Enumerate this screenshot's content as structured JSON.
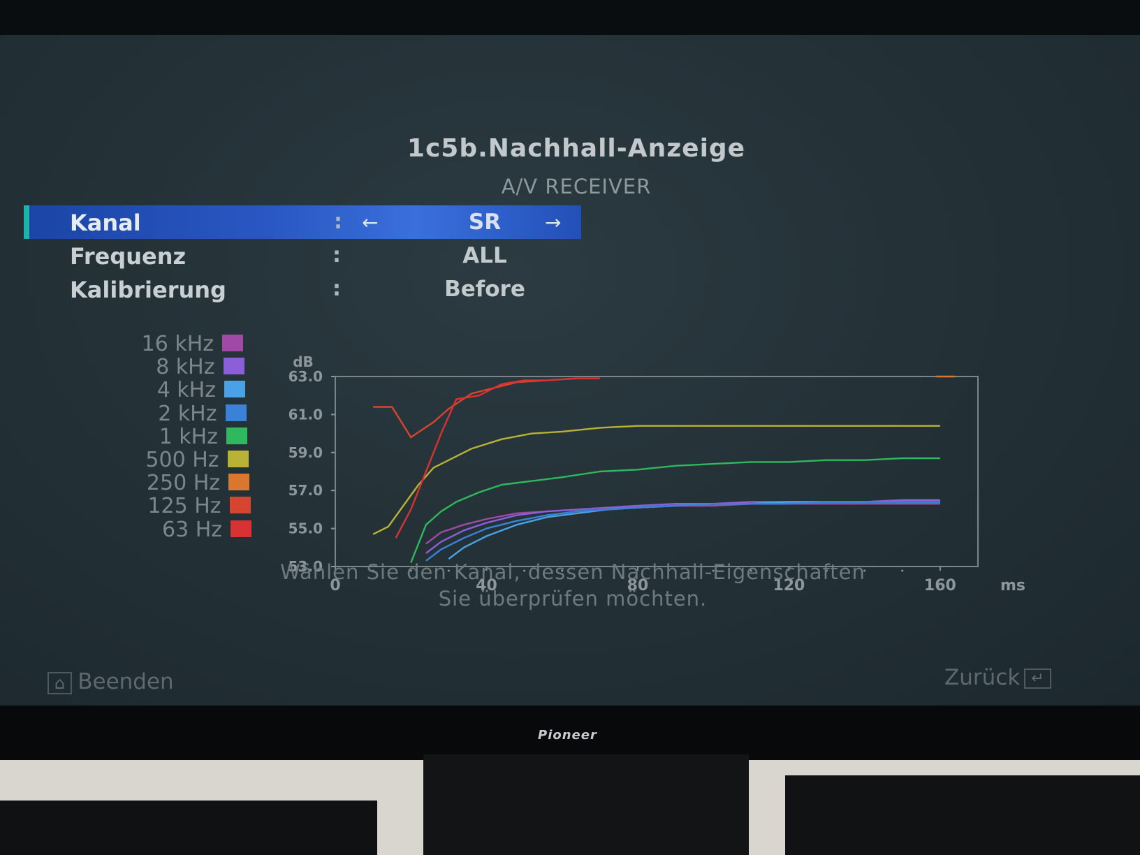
{
  "screen": {
    "title": "1c5b.Nachhall-Anzeige",
    "subtitle": "A/V RECEIVER"
  },
  "menu": {
    "items": [
      {
        "label": "Kanal",
        "colon": ":",
        "value": "SR",
        "selected": true,
        "arrow_left": "←",
        "arrow_right": "→"
      },
      {
        "label": "Frequenz",
        "colon": ":",
        "value": "ALL",
        "selected": false
      },
      {
        "label": "Kalibrierung",
        "colon": ":",
        "value": "Before",
        "selected": false
      }
    ]
  },
  "legend": {
    "items": [
      {
        "label": "16 kHz",
        "color": "#a04aa6"
      },
      {
        "label": "8 kHz",
        "color": "#8a5fd8"
      },
      {
        "label": "4 kHz",
        "color": "#4aa2e6"
      },
      {
        "label": "2 kHz",
        "color": "#3a82d8"
      },
      {
        "label": "1 kHz",
        "color": "#2fb85e"
      },
      {
        "label": "500 Hz",
        "color": "#b9b235"
      },
      {
        "label": "250 Hz",
        "color": "#d9772e"
      },
      {
        "label": "125 Hz",
        "color": "#d8452e"
      },
      {
        "label": "63 Hz",
        "color": "#d83232"
      }
    ]
  },
  "chart_data": {
    "type": "line",
    "ylabel": "dB",
    "xlabel": "ms",
    "yticks": [
      "63.0",
      "61.0",
      "59.0",
      "57.0",
      "55.0",
      "53.0"
    ],
    "xticks": [
      "0",
      "40",
      "80",
      "120",
      "160"
    ],
    "ylim": [
      53,
      63
    ],
    "xlim": [
      0,
      170
    ],
    "grid": false,
    "series": [
      {
        "name": "63 Hz",
        "color": "#d83232",
        "points": [
          [
            16,
            54.5
          ],
          [
            20,
            56
          ],
          [
            24,
            58
          ],
          [
            28,
            60
          ],
          [
            32,
            61.8
          ],
          [
            38,
            62
          ],
          [
            44,
            62.6
          ],
          [
            50,
            62.8
          ],
          [
            56,
            62.8
          ],
          [
            64,
            62.9
          ],
          [
            70,
            62.9
          ]
        ]
      },
      {
        "name": "125 Hz",
        "color": "#d8452e",
        "points": [
          [
            10,
            61.4
          ],
          [
            15,
            61.4
          ],
          [
            20,
            59.8
          ],
          [
            26,
            60.6
          ],
          [
            30,
            61.3
          ],
          [
            36,
            62.1
          ],
          [
            42,
            62.4
          ],
          [
            48,
            62.7
          ],
          [
            56,
            62.8
          ],
          [
            64,
            62.9
          ],
          [
            70,
            62.9
          ]
        ]
      },
      {
        "name": "250 Hz",
        "color": "#d9772e",
        "points": [
          [
            159,
            63.0
          ],
          [
            164,
            63.0
          ]
        ]
      },
      {
        "name": "500 Hz",
        "color": "#b9b235",
        "points": [
          [
            10,
            54.7
          ],
          [
            14,
            55.1
          ],
          [
            18,
            56.2
          ],
          [
            22,
            57.3
          ],
          [
            26,
            58.2
          ],
          [
            30,
            58.6
          ],
          [
            36,
            59.2
          ],
          [
            44,
            59.7
          ],
          [
            52,
            60.0
          ],
          [
            60,
            60.1
          ],
          [
            70,
            60.3
          ],
          [
            80,
            60.4
          ],
          [
            90,
            60.4
          ],
          [
            100,
            60.4
          ],
          [
            110,
            60.4
          ],
          [
            120,
            60.4
          ],
          [
            130,
            60.4
          ],
          [
            140,
            60.4
          ],
          [
            150,
            60.4
          ],
          [
            160,
            60.4
          ]
        ]
      },
      {
        "name": "1 kHz",
        "color": "#2fb85e",
        "points": [
          [
            20,
            53.2
          ],
          [
            24,
            55.2
          ],
          [
            28,
            55.9
          ],
          [
            32,
            56.4
          ],
          [
            38,
            56.9
          ],
          [
            44,
            57.3
          ],
          [
            52,
            57.5
          ],
          [
            60,
            57.7
          ],
          [
            70,
            58.0
          ],
          [
            80,
            58.1
          ],
          [
            90,
            58.3
          ],
          [
            100,
            58.4
          ],
          [
            110,
            58.5
          ],
          [
            120,
            58.5
          ],
          [
            130,
            58.6
          ],
          [
            140,
            58.6
          ],
          [
            150,
            58.7
          ],
          [
            160,
            58.7
          ]
        ]
      },
      {
        "name": "2 kHz",
        "color": "#3a82d8",
        "points": [
          [
            24,
            53.3
          ],
          [
            28,
            53.9
          ],
          [
            34,
            54.5
          ],
          [
            40,
            55.0
          ],
          [
            48,
            55.4
          ],
          [
            56,
            55.7
          ],
          [
            64,
            55.9
          ],
          [
            72,
            56.0
          ],
          [
            80,
            56.1
          ],
          [
            90,
            56.2
          ],
          [
            100,
            56.3
          ],
          [
            110,
            56.3
          ],
          [
            120,
            56.3
          ],
          [
            130,
            56.4
          ],
          [
            140,
            56.4
          ],
          [
            150,
            56.4
          ],
          [
            160,
            56.4
          ]
        ]
      },
      {
        "name": "4 kHz",
        "color": "#4aa2e6",
        "points": [
          [
            30,
            53.4
          ],
          [
            34,
            54.0
          ],
          [
            40,
            54.6
          ],
          [
            48,
            55.2
          ],
          [
            56,
            55.6
          ],
          [
            64,
            55.8
          ],
          [
            72,
            56.0
          ],
          [
            80,
            56.1
          ],
          [
            90,
            56.2
          ],
          [
            100,
            56.3
          ],
          [
            110,
            56.3
          ],
          [
            120,
            56.4
          ],
          [
            130,
            56.4
          ],
          [
            140,
            56.4
          ],
          [
            150,
            56.4
          ],
          [
            160,
            56.4
          ]
        ]
      },
      {
        "name": "8 kHz",
        "color": "#8a5fd8",
        "points": [
          [
            24,
            53.7
          ],
          [
            28,
            54.3
          ],
          [
            34,
            54.9
          ],
          [
            40,
            55.3
          ],
          [
            48,
            55.7
          ],
          [
            56,
            55.9
          ],
          [
            64,
            56.0
          ],
          [
            72,
            56.1
          ],
          [
            80,
            56.2
          ],
          [
            90,
            56.3
          ],
          [
            100,
            56.3
          ],
          [
            110,
            56.4
          ],
          [
            120,
            56.4
          ],
          [
            130,
            56.4
          ],
          [
            140,
            56.4
          ],
          [
            150,
            56.5
          ],
          [
            160,
            56.5
          ]
        ]
      },
      {
        "name": "16 kHz",
        "color": "#a04aa6",
        "points": [
          [
            24,
            54.2
          ],
          [
            28,
            54.8
          ],
          [
            34,
            55.2
          ],
          [
            40,
            55.5
          ],
          [
            48,
            55.8
          ],
          [
            56,
            55.9
          ],
          [
            64,
            56.0
          ],
          [
            72,
            56.1
          ],
          [
            80,
            56.1
          ],
          [
            90,
            56.2
          ],
          [
            100,
            56.2
          ],
          [
            110,
            56.3
          ],
          [
            120,
            56.3
          ],
          [
            130,
            56.3
          ],
          [
            140,
            56.3
          ],
          [
            150,
            56.3
          ],
          [
            160,
            56.3
          ]
        ]
      }
    ]
  },
  "hint": {
    "line1": "Wählen Sie den Kanal, dessen Nachhall-Eigenschaften",
    "line2": "Sie überprüfen möchten."
  },
  "footer": {
    "exit_key": "⌂",
    "exit_label": "Beenden",
    "back_label": "Zurück",
    "back_key": "↵"
  },
  "tv": {
    "brand": "Pioneer"
  }
}
